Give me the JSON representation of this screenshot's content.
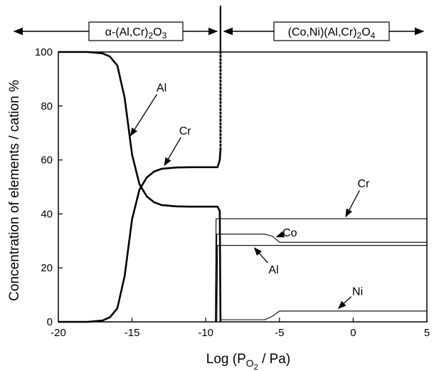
{
  "chart_data": {
    "type": "line",
    "xlabel": "Log (P",
    "xlabel_sub": "O",
    "xlabel_subsub": "2",
    "xlabel_end": " / Pa)",
    "ylabel": "Concentration of elements  / cation %",
    "xlim": [
      -20,
      5
    ],
    "ylim": [
      0,
      100
    ],
    "xticks": [
      -20,
      -15,
      -10,
      -5,
      0,
      5
    ],
    "yticks": [
      0,
      20,
      40,
      60,
      80,
      100
    ],
    "grid": false,
    "phase_boundary_x": -9,
    "phases": [
      {
        "label_main": "α-(Al,Cr)",
        "sub1": "2",
        "mid": "O",
        "sub2": "3",
        "x_range": [
          -20,
          -9
        ]
      },
      {
        "label_main": "(Co,Ni)(Al,Cr)",
        "sub1": "2",
        "mid": "O",
        "sub2": "4",
        "x_range": [
          -9,
          5
        ]
      }
    ],
    "series": [
      {
        "name": "Al",
        "width": "thick",
        "x": [
          -20,
          -18,
          -17,
          -16.5,
          -16,
          -15.5,
          -15,
          -14.5,
          -14,
          -13.5,
          -13,
          -12,
          -11,
          -10,
          -9.2,
          -9.05,
          -9.0
        ],
        "y": [
          100,
          100,
          99.5,
          98.3,
          95,
          83,
          62,
          51,
          46.5,
          44.3,
          43.3,
          42.8,
          42.7,
          42.7,
          42.7,
          41,
          0
        ]
      },
      {
        "name": "Cr",
        "width": "thick",
        "x": [
          -20,
          -18,
          -17,
          -16.5,
          -16,
          -15.5,
          -15,
          -14.5,
          -14,
          -13.5,
          -13,
          -12,
          -11,
          -10,
          -9.2,
          -9.05,
          -9.0
        ],
        "y": [
          0,
          0,
          0.5,
          1.7,
          5,
          17,
          38,
          49,
          53.5,
          55.7,
          56.7,
          57.2,
          57.3,
          57.3,
          57.3,
          60,
          64
        ]
      },
      {
        "name": "Cr",
        "width": "thin",
        "x": [
          -9.35,
          -9.3,
          5
        ],
        "y": [
          0,
          38.2,
          38.2
        ]
      },
      {
        "name": "Co",
        "width": "thin",
        "x": [
          -9.3,
          -9.25,
          -6,
          -5.5,
          -5,
          5
        ],
        "y": [
          0,
          32.5,
          32.5,
          31.8,
          29.5,
          29.5
        ]
      },
      {
        "name": "Al",
        "width": "thin",
        "x": [
          -9.25,
          -9.2,
          5
        ],
        "y": [
          0,
          28.3,
          28.3
        ]
      },
      {
        "name": "Ni",
        "width": "thin",
        "x": [
          -9,
          -6,
          -5.5,
          -5,
          5
        ],
        "y": [
          0.8,
          0.8,
          2,
          4,
          4
        ]
      }
    ],
    "annotations": [
      {
        "text": "Al",
        "x": -13,
        "y": 87,
        "arrow_to": [
          -15.1,
          69
        ]
      },
      {
        "text": "Cr",
        "x": -11.4,
        "y": 71,
        "arrow_to": [
          -12.8,
          58
        ]
      },
      {
        "text": "Cr",
        "x": 0.7,
        "y": 51.5,
        "arrow_to": [
          -0.5,
          39
        ]
      },
      {
        "text": "Co",
        "x": -4.3,
        "y": 33.3,
        "arrow_to": [
          -5.2,
          31.5
        ]
      },
      {
        "text": "Al",
        "x": -5.4,
        "y": 19.5,
        "arrow_to": [
          -6.7,
          27.4
        ]
      },
      {
        "text": "Ni",
        "x": 0.3,
        "y": 11.5,
        "arrow_to": [
          -1.0,
          5.0
        ]
      }
    ]
  }
}
